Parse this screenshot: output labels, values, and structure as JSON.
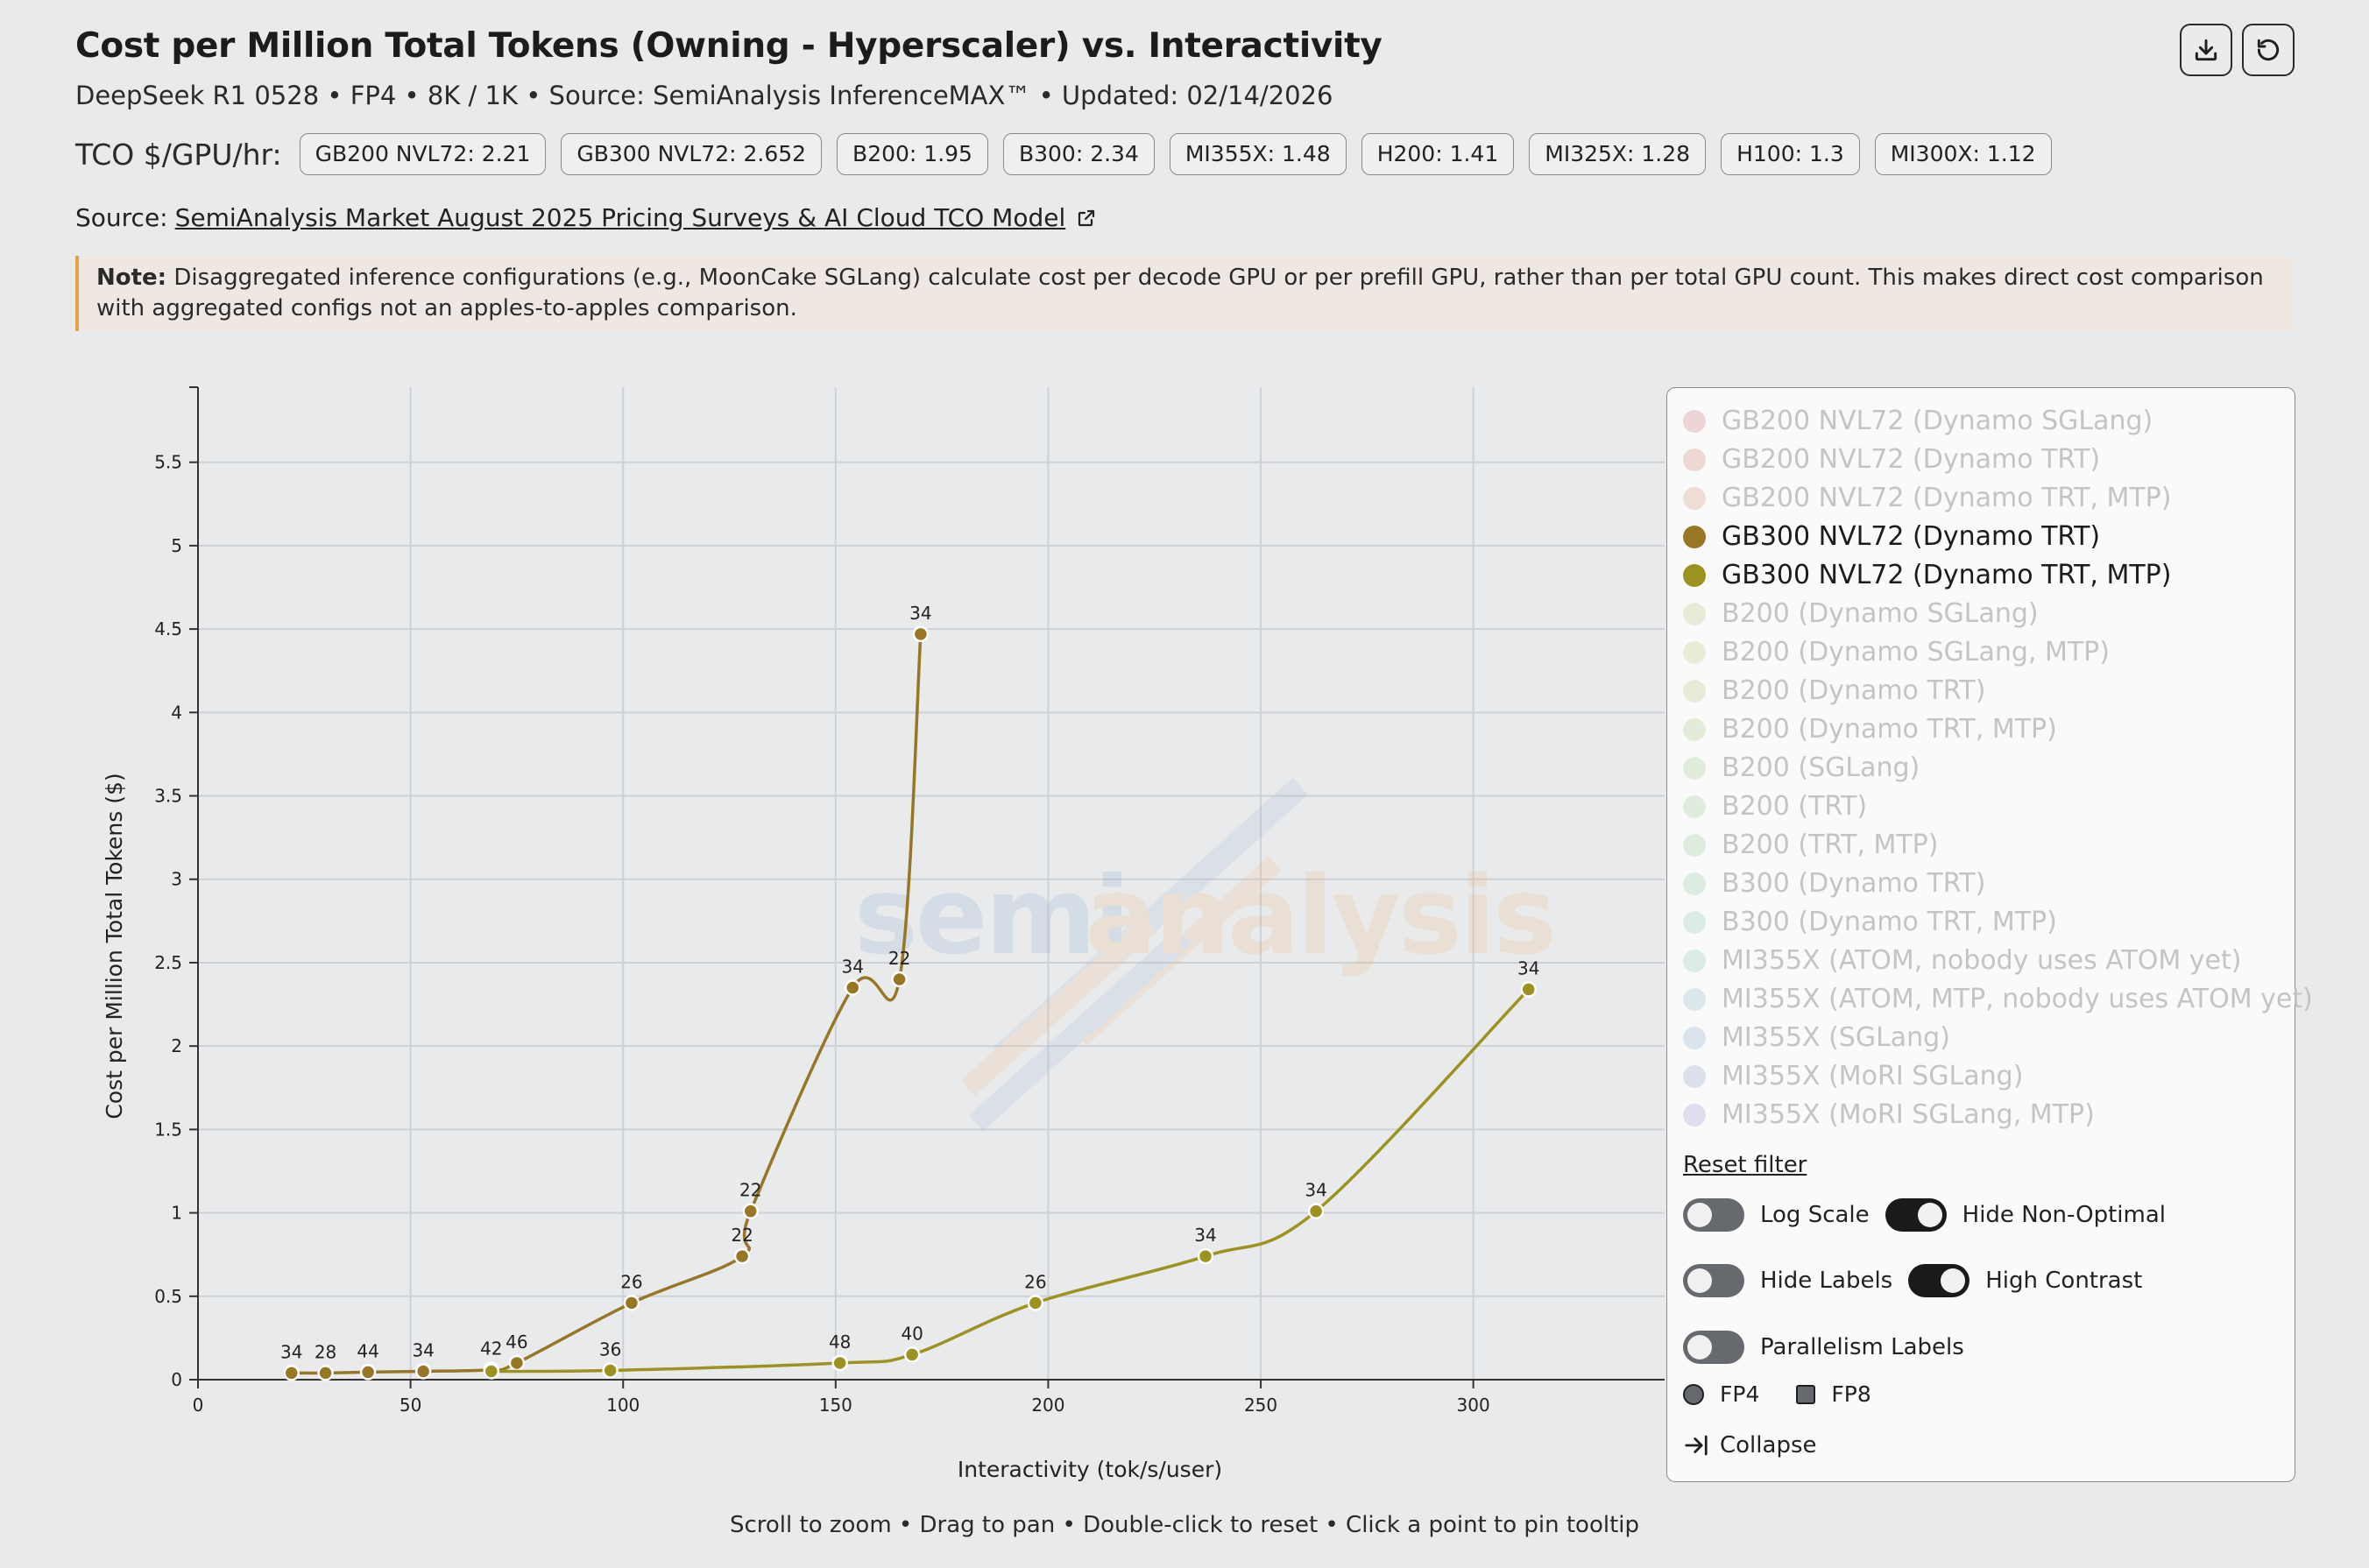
{
  "header": {
    "title": "Cost per Million Total Tokens (Owning - Hyperscaler) vs. Interactivity",
    "subtitle": "DeepSeek R1 0528 • FP4 • 8K / 1K • Source: SemiAnalysis InferenceMAX™ • Updated: 02/14/2026"
  },
  "tco": {
    "label": "TCO $/GPU/hr:",
    "pills": [
      "GB200 NVL72: 2.21",
      "GB300 NVL72: 2.652",
      "B200: 1.95",
      "B300: 2.34",
      "MI355X: 1.48",
      "H200: 1.41",
      "MI325X: 1.28",
      "H100: 1.3",
      "MI300X: 1.12"
    ]
  },
  "source": {
    "prefix": "Source:",
    "link": "SemiAnalysis Market August 2025 Pricing Surveys & AI Cloud TCO Model"
  },
  "note": {
    "bold": "Note:",
    "text": " Disaggregated inference configurations (e.g., MoonCake SGLang) calculate cost per decode GPU or per prefill GPU, rather than per total GPU count. This makes direct cost comparison with aggregated configs not an apples-to-apples comparison."
  },
  "watermark": {
    "part1": "semi",
    "part2": "analysis"
  },
  "legend": {
    "items": [
      {
        "label": "GB200 NVL72 (Dynamo SGLang)",
        "color": "#dba9a6",
        "active": false
      },
      {
        "label": "GB200 NVL72 (Dynamo TRT)",
        "color": "#deb0a6",
        "active": false
      },
      {
        "label": "GB200 NVL72 (Dynamo TRT, MTP)",
        "color": "#e0bba8",
        "active": false
      },
      {
        "label": "GB300 NVL72 (Dynamo TRT)",
        "color": "#977625",
        "active": true
      },
      {
        "label": "GB300 NVL72 (Dynamo TRT, MTP)",
        "color": "#9c921f",
        "active": true
      },
      {
        "label": "B200 (Dynamo SGLang)",
        "color": "#d8d8b0",
        "active": false
      },
      {
        "label": "B200 (Dynamo SGLang, MTP)",
        "color": "#d6dbb0",
        "active": false
      },
      {
        "label": "B200 (Dynamo TRT)",
        "color": "#cfdcb0",
        "active": false
      },
      {
        "label": "B200 (Dynamo TRT, MTP)",
        "color": "#c8dcb2",
        "active": false
      },
      {
        "label": "B200 (SGLang)",
        "color": "#c4dcb6",
        "active": false
      },
      {
        "label": "B200 (TRT)",
        "color": "#c1dcbb",
        "active": false
      },
      {
        "label": "B200 (TRT, MTP)",
        "color": "#bddcbf",
        "active": false
      },
      {
        "label": "B300 (Dynamo TRT)",
        "color": "#b8dcc4",
        "active": false
      },
      {
        "label": "B300 (Dynamo TRT, MTP)",
        "color": "#b5dcca",
        "active": false
      },
      {
        "label": "MI355X (ATOM, nobody uses ATOM yet)",
        "color": "#b4dad2",
        "active": false
      },
      {
        "label": "MI355X (ATOM, MTP, nobody uses ATOM yet)",
        "color": "#b4d2dc",
        "active": false
      },
      {
        "label": "MI355X (SGLang)",
        "color": "#b6c8dc",
        "active": false
      },
      {
        "label": "MI355X (MoRI SGLang)",
        "color": "#b9c1de",
        "active": false
      },
      {
        "label": "MI355X (MoRI SGLang, MTP)",
        "color": "#bdbde0",
        "active": false
      }
    ],
    "reset_filter": "Reset filter",
    "toggles": {
      "log_scale": "Log Scale",
      "hide_non_optimal": "Hide Non-Optimal",
      "hide_labels": "Hide Labels",
      "high_contrast": "High Contrast",
      "parallelism_labels": "Parallelism Labels"
    },
    "toggle_states": {
      "log_scale": false,
      "hide_non_optimal": true,
      "hide_labels": false,
      "high_contrast": true,
      "parallelism_labels": false
    },
    "shapes": {
      "fp4": "FP4",
      "fp8": "FP8"
    },
    "collapse": "Collapse"
  },
  "hint": "Scroll to zoom • Drag to pan • Double-click to reset • Click a point to pin tooltip",
  "chart_data": {
    "type": "line",
    "title": "Cost per Million Total Tokens (Owning - Hyperscaler) vs. Interactivity",
    "xlabel": "Interactivity (tok/s/user)",
    "ylabel": "Cost per Million Total Tokens ($)",
    "xlim": [
      0,
      345
    ],
    "ylim": [
      0,
      5.95
    ],
    "xticks": [
      0,
      50,
      100,
      150,
      200,
      250,
      300
    ],
    "yticks": [
      0,
      0.5,
      1,
      1.5,
      2,
      2.5,
      3,
      3.5,
      4,
      4.5,
      5,
      5.5
    ],
    "grid": true,
    "series": [
      {
        "name": "GB300 NVL72 (Dynamo TRT)",
        "color": "#977625",
        "points": [
          {
            "x": 22,
            "y": 0.04,
            "label": "34"
          },
          {
            "x": 30,
            "y": 0.04,
            "label": "28"
          },
          {
            "x": 40,
            "y": 0.045,
            "label": "44"
          },
          {
            "x": 53,
            "y": 0.05,
            "label": "34"
          },
          {
            "x": 69,
            "y": 0.06,
            "label": "42"
          },
          {
            "x": 75,
            "y": 0.1,
            "label": "46"
          },
          {
            "x": 102,
            "y": 0.46,
            "label": "26"
          },
          {
            "x": 128,
            "y": 0.74,
            "label": "22"
          },
          {
            "x": 130,
            "y": 1.01,
            "label": "22"
          },
          {
            "x": 154,
            "y": 2.35,
            "label": "34"
          },
          {
            "x": 165,
            "y": 2.4,
            "label": "22"
          },
          {
            "x": 170,
            "y": 4.47,
            "label": "34"
          }
        ]
      },
      {
        "name": "GB300 NVL72 (Dynamo TRT, MTP)",
        "color": "#9c921f",
        "points": [
          {
            "x": 69,
            "y": 0.05,
            "label": ""
          },
          {
            "x": 97,
            "y": 0.055,
            "label": "36"
          },
          {
            "x": 151,
            "y": 0.1,
            "label": "48"
          },
          {
            "x": 168,
            "y": 0.15,
            "label": "40"
          },
          {
            "x": 197,
            "y": 0.46,
            "label": "26"
          },
          {
            "x": 237,
            "y": 0.74,
            "label": "34"
          },
          {
            "x": 263,
            "y": 1.01,
            "label": "34"
          },
          {
            "x": 313,
            "y": 2.34,
            "label": "34"
          }
        ]
      }
    ]
  }
}
